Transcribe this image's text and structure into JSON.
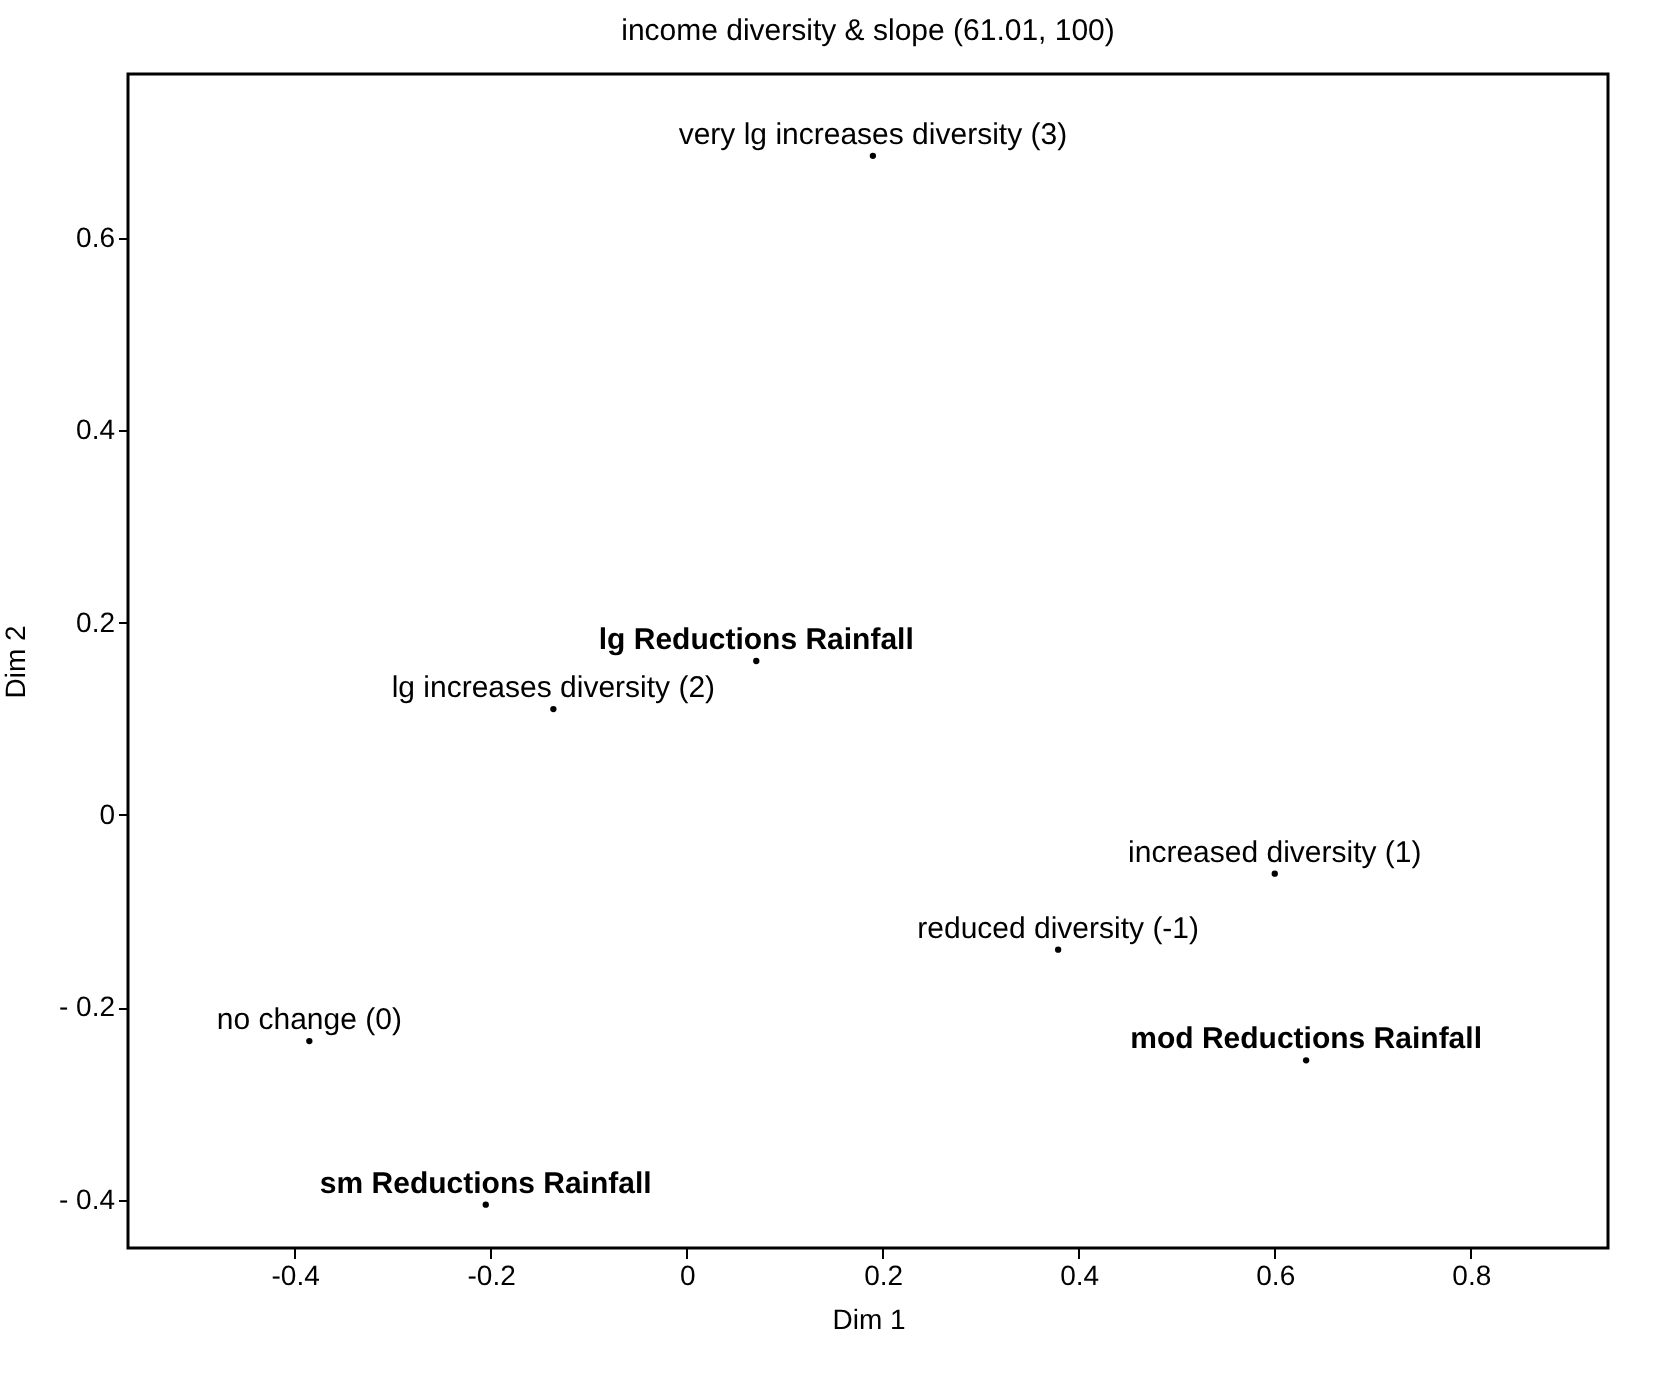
{
  "chart_data": {
    "type": "scatter",
    "title": "income diversity & slope (61.01, 100)",
    "xlabel": "Dim 1",
    "ylabel": "Dim 2",
    "xlim": [
      -0.57,
      0.94
    ],
    "ylim": [
      -0.45,
      0.77
    ],
    "xticks": [
      -0.4,
      -0.2,
      0,
      0.2,
      0.4,
      0.6,
      0.8
    ],
    "yticks": [
      {
        "value": -0.4,
        "label": "- 0.4"
      },
      {
        "value": -0.2,
        "label": "- 0.2"
      },
      0,
      0.2,
      0.4,
      0.6
    ],
    "grid": false,
    "marker": "circle",
    "series": [
      {
        "color": "#000000",
        "x": [
          0.071,
          0.632,
          -0.205
        ],
        "values": [
          0.16,
          -0.255,
          -0.405
        ]
      },
      {
        "color": "#000000",
        "x": [
          0.19,
          -0.136,
          0.6,
          0.379,
          -0.385
        ],
        "values": [
          0.685,
          0.11,
          -0.061,
          -0.14,
          -0.235
        ]
      }
    ],
    "annotations": [
      {
        "text": "lg Reductions Rainfall",
        "x": 0.071,
        "y": 0.16
      },
      {
        "text": "mod Reductions Rainfall",
        "x": 0.632,
        "y": -0.255
      },
      {
        "text": "sm Reductions Rainfall",
        "x": -0.205,
        "y": -0.405
      },
      {
        "text": "very lg increases diversity (3)",
        "x": 0.19,
        "y": 0.685
      },
      {
        "text": "lg increases diversity (2)",
        "x": -0.136,
        "y": 0.11
      },
      {
        "text": "increased diversity (1)",
        "x": 0.6,
        "y": -0.061
      },
      {
        "text": "reduced diversity (-1)",
        "x": 0.379,
        "y": -0.14
      },
      {
        "text": "no change (0)",
        "x": -0.385,
        "y": -0.235
      }
    ]
  }
}
